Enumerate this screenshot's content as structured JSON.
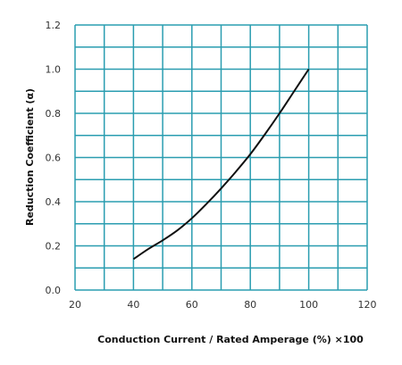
{
  "chart_data": {
    "type": "line",
    "title": "",
    "xlabel": "Conduction Current / Rated Amperage (%) ×100",
    "ylabel": "Reduction Coefficient (α)",
    "xlim": [
      20,
      120
    ],
    "ylim": [
      0.0,
      1.2
    ],
    "x_ticks": [
      "20",
      "40",
      "60",
      "80",
      "100",
      "120"
    ],
    "y_ticks": [
      "0.0",
      "0.2",
      "0.4",
      "0.6",
      "0.8",
      "1.0",
      "1.2"
    ],
    "x_grid_step": 10,
    "y_grid_step": 0.1,
    "grid": true,
    "grid_color": "#2a9db0",
    "line_color": "#111111",
    "series": [
      {
        "x": [
          40,
          45,
          50,
          55,
          60,
          65,
          70,
          75,
          80,
          85,
          90,
          95,
          100
        ],
        "values": [
          0.14,
          0.185,
          0.225,
          0.27,
          0.325,
          0.39,
          0.46,
          0.535,
          0.615,
          0.705,
          0.8,
          0.9,
          1.0
        ]
      }
    ]
  }
}
